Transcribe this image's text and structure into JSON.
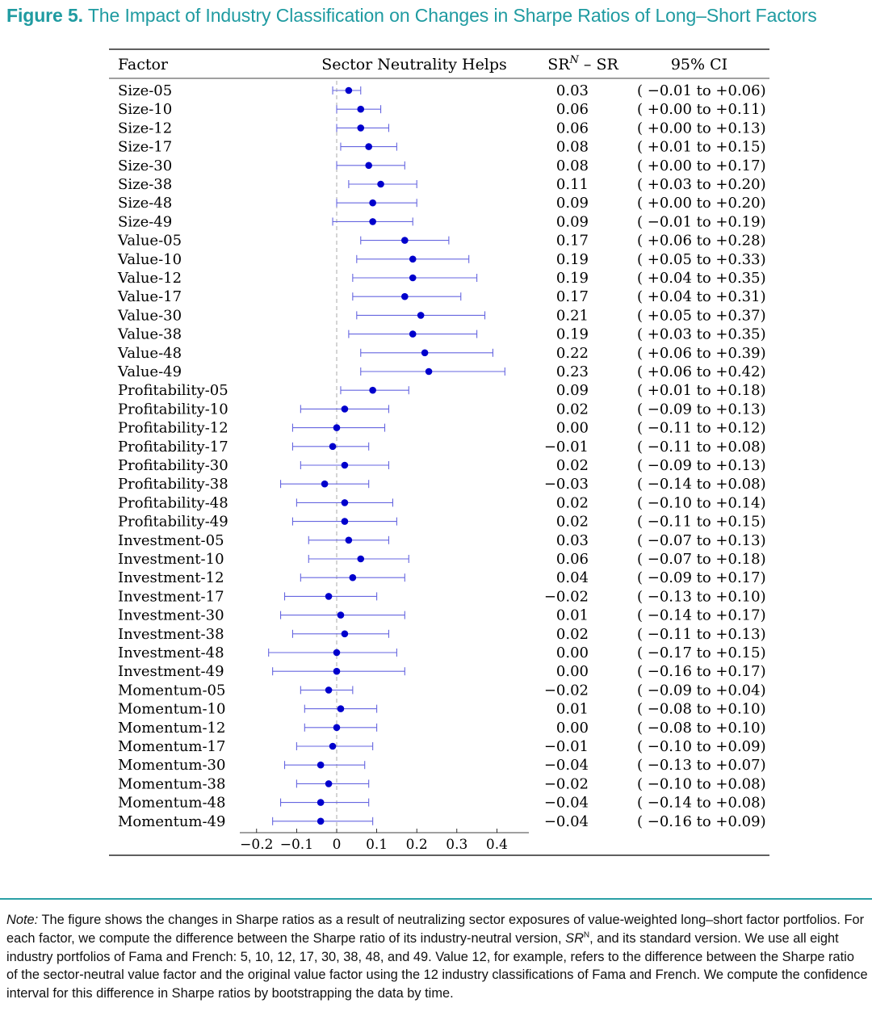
{
  "figure": {
    "label": "Figure 5.",
    "title": "The Impact of Industry Classification on Changes in Sharpe Ratios of Long–Short Factors"
  },
  "chart_data": {
    "type": "forest",
    "columns": {
      "factor": "Factor",
      "plot": "Sector Neutrality Helps",
      "diff": "SR",
      "diff_sup": "N",
      "diff_tail": " – SR",
      "ci": "95% CI"
    },
    "xlim": [
      -0.2,
      0.4
    ],
    "xticks": [
      {
        "v": -0.2,
        "label": "−0.2"
      },
      {
        "v": -0.1,
        "label": "−0.1"
      },
      {
        "v": 0,
        "label": "0"
      },
      {
        "v": 0.1,
        "label": "0.1"
      },
      {
        "v": 0.2,
        "label": "0.2"
      },
      {
        "v": 0.3,
        "label": "0.3"
      },
      {
        "v": 0.4,
        "label": "0.4"
      }
    ],
    "reference_line": 0,
    "colors": {
      "marker": "#0000cc",
      "ci_line": "#6666e0",
      "reference": "#aaaaaa"
    },
    "rows": [
      {
        "factor": "Size-05",
        "value": 0.03,
        "lo": -0.01,
        "hi": 0.06,
        "value_label": "0.03",
        "ci_label": "( −0.01 to +0.06)"
      },
      {
        "factor": "Size-10",
        "value": 0.06,
        "lo": 0.0,
        "hi": 0.11,
        "value_label": "0.06",
        "ci_label": "( +0.00 to +0.11)"
      },
      {
        "factor": "Size-12",
        "value": 0.06,
        "lo": 0.0,
        "hi": 0.13,
        "value_label": "0.06",
        "ci_label": "( +0.00 to +0.13)"
      },
      {
        "factor": "Size-17",
        "value": 0.08,
        "lo": 0.01,
        "hi": 0.15,
        "value_label": "0.08",
        "ci_label": "( +0.01 to +0.15)"
      },
      {
        "factor": "Size-30",
        "value": 0.08,
        "lo": 0.0,
        "hi": 0.17,
        "value_label": "0.08",
        "ci_label": "( +0.00 to +0.17)"
      },
      {
        "factor": "Size-38",
        "value": 0.11,
        "lo": 0.03,
        "hi": 0.2,
        "value_label": "0.11",
        "ci_label": "( +0.03 to +0.20)"
      },
      {
        "factor": "Size-48",
        "value": 0.09,
        "lo": 0.0,
        "hi": 0.2,
        "value_label": "0.09",
        "ci_label": "( +0.00 to +0.20)"
      },
      {
        "factor": "Size-49",
        "value": 0.09,
        "lo": -0.01,
        "hi": 0.19,
        "value_label": "0.09",
        "ci_label": "( −0.01 to +0.19)"
      },
      {
        "factor": "Value-05",
        "value": 0.17,
        "lo": 0.06,
        "hi": 0.28,
        "value_label": "0.17",
        "ci_label": "( +0.06 to +0.28)"
      },
      {
        "factor": "Value-10",
        "value": 0.19,
        "lo": 0.05,
        "hi": 0.33,
        "value_label": "0.19",
        "ci_label": "( +0.05 to +0.33)"
      },
      {
        "factor": "Value-12",
        "value": 0.19,
        "lo": 0.04,
        "hi": 0.35,
        "value_label": "0.19",
        "ci_label": "( +0.04 to +0.35)"
      },
      {
        "factor": "Value-17",
        "value": 0.17,
        "lo": 0.04,
        "hi": 0.31,
        "value_label": "0.17",
        "ci_label": "( +0.04 to +0.31)"
      },
      {
        "factor": "Value-30",
        "value": 0.21,
        "lo": 0.05,
        "hi": 0.37,
        "value_label": "0.21",
        "ci_label": "( +0.05 to +0.37)"
      },
      {
        "factor": "Value-38",
        "value": 0.19,
        "lo": 0.03,
        "hi": 0.35,
        "value_label": "0.19",
        "ci_label": "( +0.03 to +0.35)"
      },
      {
        "factor": "Value-48",
        "value": 0.22,
        "lo": 0.06,
        "hi": 0.39,
        "value_label": "0.22",
        "ci_label": "( +0.06 to +0.39)"
      },
      {
        "factor": "Value-49",
        "value": 0.23,
        "lo": 0.06,
        "hi": 0.42,
        "value_label": "0.23",
        "ci_label": "( +0.06 to +0.42)"
      },
      {
        "factor": "Profitability-05",
        "value": 0.09,
        "lo": 0.01,
        "hi": 0.18,
        "value_label": "0.09",
        "ci_label": "( +0.01 to +0.18)"
      },
      {
        "factor": "Profitability-10",
        "value": 0.02,
        "lo": -0.09,
        "hi": 0.13,
        "value_label": "0.02",
        "ci_label": "( −0.09 to +0.13)"
      },
      {
        "factor": "Profitability-12",
        "value": 0.0,
        "lo": -0.11,
        "hi": 0.12,
        "value_label": "0.00",
        "ci_label": "( −0.11 to +0.12)"
      },
      {
        "factor": "Profitability-17",
        "value": -0.01,
        "lo": -0.11,
        "hi": 0.08,
        "value_label": "−0.01",
        "ci_label": "( −0.11 to +0.08)"
      },
      {
        "factor": "Profitability-30",
        "value": 0.02,
        "lo": -0.09,
        "hi": 0.13,
        "value_label": "0.02",
        "ci_label": "( −0.09 to +0.13)"
      },
      {
        "factor": "Profitability-38",
        "value": -0.03,
        "lo": -0.14,
        "hi": 0.08,
        "value_label": "−0.03",
        "ci_label": "( −0.14 to +0.08)"
      },
      {
        "factor": "Profitability-48",
        "value": 0.02,
        "lo": -0.1,
        "hi": 0.14,
        "value_label": "0.02",
        "ci_label": "( −0.10 to +0.14)"
      },
      {
        "factor": "Profitability-49",
        "value": 0.02,
        "lo": -0.11,
        "hi": 0.15,
        "value_label": "0.02",
        "ci_label": "( −0.11 to +0.15)"
      },
      {
        "factor": "Investment-05",
        "value": 0.03,
        "lo": -0.07,
        "hi": 0.13,
        "value_label": "0.03",
        "ci_label": "( −0.07 to +0.13)"
      },
      {
        "factor": "Investment-10",
        "value": 0.06,
        "lo": -0.07,
        "hi": 0.18,
        "value_label": "0.06",
        "ci_label": "( −0.07 to +0.18)"
      },
      {
        "factor": "Investment-12",
        "value": 0.04,
        "lo": -0.09,
        "hi": 0.17,
        "value_label": "0.04",
        "ci_label": "( −0.09 to +0.17)"
      },
      {
        "factor": "Investment-17",
        "value": -0.02,
        "lo": -0.13,
        "hi": 0.1,
        "value_label": "−0.02",
        "ci_label": "( −0.13 to +0.10)"
      },
      {
        "factor": "Investment-30",
        "value": 0.01,
        "lo": -0.14,
        "hi": 0.17,
        "value_label": "0.01",
        "ci_label": "( −0.14 to +0.17)"
      },
      {
        "factor": "Investment-38",
        "value": 0.02,
        "lo": -0.11,
        "hi": 0.13,
        "value_label": "0.02",
        "ci_label": "( −0.11 to +0.13)"
      },
      {
        "factor": "Investment-48",
        "value": 0.0,
        "lo": -0.17,
        "hi": 0.15,
        "value_label": "0.00",
        "ci_label": "( −0.17 to +0.15)"
      },
      {
        "factor": "Investment-49",
        "value": 0.0,
        "lo": -0.16,
        "hi": 0.17,
        "value_label": "0.00",
        "ci_label": "( −0.16 to +0.17)"
      },
      {
        "factor": "Momentum-05",
        "value": -0.02,
        "lo": -0.09,
        "hi": 0.04,
        "value_label": "−0.02",
        "ci_label": "( −0.09 to +0.04)"
      },
      {
        "factor": "Momentum-10",
        "value": 0.01,
        "lo": -0.08,
        "hi": 0.1,
        "value_label": "0.01",
        "ci_label": "( −0.08 to +0.10)"
      },
      {
        "factor": "Momentum-12",
        "value": 0.0,
        "lo": -0.08,
        "hi": 0.1,
        "value_label": "0.00",
        "ci_label": "( −0.08 to +0.10)"
      },
      {
        "factor": "Momentum-17",
        "value": -0.01,
        "lo": -0.1,
        "hi": 0.09,
        "value_label": "−0.01",
        "ci_label": "( −0.10 to +0.09)"
      },
      {
        "factor": "Momentum-30",
        "value": -0.04,
        "lo": -0.13,
        "hi": 0.07,
        "value_label": "−0.04",
        "ci_label": "( −0.13 to +0.07)"
      },
      {
        "factor": "Momentum-38",
        "value": -0.02,
        "lo": -0.1,
        "hi": 0.08,
        "value_label": "−0.02",
        "ci_label": "( −0.10 to +0.08)"
      },
      {
        "factor": "Momentum-48",
        "value": -0.04,
        "lo": -0.14,
        "hi": 0.08,
        "value_label": "−0.04",
        "ci_label": "( −0.14 to +0.08)"
      },
      {
        "factor": "Momentum-49",
        "value": -0.04,
        "lo": -0.16,
        "hi": 0.09,
        "value_label": "−0.04",
        "ci_label": "( −0.16 to +0.09)"
      }
    ]
  },
  "note": {
    "lead": "Note:",
    "part1": " The figure shows the changes in Sharpe ratios as a result of neutralizing sector exposures of value-weighted long–short factor portfolios. For each factor, we compute the difference between the Sharpe ratio of its industry-neutral version, ",
    "sr": "SR",
    "sup": "N",
    "part2": ", and its standard version. We use all eight industry portfolios of Fama and French: 5, 10, 12, 17, 30, 38, 48, and 49. Value 12, for example, refers to the difference between the Sharpe ratio of the sector-neutral value factor and the original value factor using the 12 industry classifications of Fama and French. We compute the confidence interval for this difference in Sharpe ratios by bootstrapping the data by time."
  }
}
